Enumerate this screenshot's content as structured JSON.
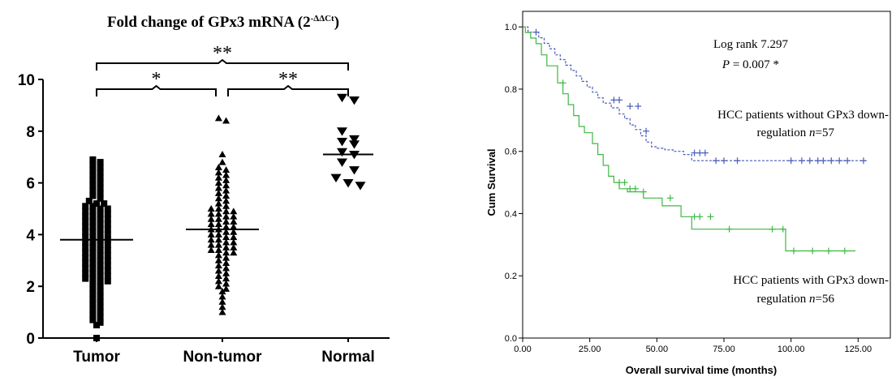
{
  "chart_data": [
    {
      "type": "scatter",
      "title": "Fold change of GPx3 mRNA (2",
      "title_sup": "-ΔΔCt",
      "xlabel": "",
      "ylabel": "",
      "categories": [
        "Tumor",
        "Non-tumor",
        "Normal"
      ],
      "ylim": [
        0,
        10
      ],
      "yticks": [
        "0",
        "2",
        "4",
        "6",
        "8",
        "10"
      ],
      "markers": [
        "square",
        "triangle-up",
        "triangle-down"
      ],
      "means": [
        3.8,
        4.2,
        7.1
      ],
      "series": [
        {
          "values": [
            6.9,
            6.8,
            6.7,
            6.6,
            6.5,
            6.4,
            6.3,
            6.2,
            6.1,
            6.0,
            5.9,
            5.8,
            5.7,
            5.6,
            5.5,
            5.4,
            5.3,
            5.2,
            5.2,
            5.1,
            5.1,
            5.0,
            5.0,
            4.9,
            4.9,
            4.8,
            4.8,
            4.7,
            4.7,
            4.6,
            4.6,
            4.5,
            4.5,
            4.4,
            4.4,
            4.3,
            4.3,
            4.2,
            4.2,
            4.1,
            4.1,
            4.0,
            4.0,
            3.9,
            3.9,
            3.8,
            3.8,
            3.7,
            3.7,
            3.6,
            3.6,
            3.5,
            3.5,
            3.4,
            3.4,
            3.3,
            3.3,
            3.2,
            3.2,
            3.1,
            3.1,
            3.0,
            3.0,
            2.9,
            2.9,
            2.8,
            2.8,
            2.7,
            2.7,
            2.6,
            2.6,
            2.5,
            2.5,
            2.4,
            2.4,
            2.3,
            2.3,
            2.2,
            2.2,
            2.1,
            2.0,
            1.9,
            1.8,
            1.7,
            1.6,
            1.5,
            1.4,
            1.3,
            1.2,
            1.1,
            1.0,
            0.9,
            0.8,
            0.7,
            0.6,
            0.5,
            0.0
          ]
        },
        {
          "values": [
            8.5,
            8.4,
            7.1,
            6.8,
            6.6,
            6.5,
            6.4,
            6.3,
            6.2,
            6.1,
            6.0,
            5.9,
            5.8,
            5.7,
            5.6,
            5.5,
            5.4,
            5.3,
            5.2,
            5.1,
            5.0,
            5.0,
            4.9,
            4.9,
            4.8,
            4.8,
            4.7,
            4.7,
            4.6,
            4.6,
            4.5,
            4.5,
            4.4,
            4.4,
            4.3,
            4.3,
            4.2,
            4.2,
            4.1,
            4.1,
            4.0,
            4.0,
            3.9,
            3.9,
            3.8,
            3.8,
            3.7,
            3.7,
            3.6,
            3.6,
            3.5,
            3.5,
            3.4,
            3.4,
            3.3,
            3.3,
            3.2,
            3.1,
            3.0,
            2.9,
            2.8,
            2.7,
            2.6,
            2.5,
            2.4,
            2.3,
            2.2,
            2.1,
            2.0,
            1.9,
            1.8,
            1.6,
            1.4,
            1.2,
            1.0
          ]
        },
        {
          "values": [
            9.3,
            9.2,
            8.0,
            7.7,
            7.6,
            7.5,
            7.2,
            7.1,
            6.8,
            6.5,
            6.2,
            6.0,
            5.9
          ]
        }
      ],
      "annotations": [
        {
          "from": 0,
          "to": 2,
          "text": "**"
        },
        {
          "from": 0,
          "to": 1,
          "text": "*"
        },
        {
          "from": 1,
          "to": 2,
          "text": "**"
        }
      ]
    },
    {
      "type": "line",
      "xlabel": "Overall survival time (months)",
      "ylabel": "Cum Survival",
      "xlim": [
        0,
        137
      ],
      "ylim": [
        0,
        1.05
      ],
      "xticks": [
        0,
        25,
        50,
        75,
        100,
        125
      ],
      "xtick_labels": [
        "0.00",
        "25.00",
        "50.00",
        "75.00",
        "100.00",
        "125.00"
      ],
      "yticks": [
        0,
        0.2,
        0.4,
        0.6,
        0.8,
        1.0
      ],
      "ytick_labels": [
        "0.0",
        "0.2",
        "0.4",
        "0.6",
        "0.8",
        "1.0"
      ],
      "stats": {
        "line1": "Log rank 7.297",
        "p_symbol": "P",
        "p_rest": " = 0.007 *"
      },
      "series": [
        {
          "color": "#4a5bb8",
          "style": "dashed",
          "label_line1": "HCC patients without GPx3 down-",
          "label_line2_text": "regulation  ",
          "label_n_symbol": "n",
          "label_n_value": "=57",
          "x": [
            0,
            2,
            2,
            6,
            6,
            8,
            8,
            10,
            10,
            12,
            12,
            14,
            14,
            16,
            16,
            18,
            18,
            20,
            20,
            22,
            22,
            24,
            24,
            26,
            26,
            28,
            28,
            30,
            30,
            33,
            33,
            36,
            36,
            38,
            38,
            40,
            40,
            42,
            42,
            44,
            44,
            46,
            46,
            48,
            48,
            50,
            50,
            53,
            53,
            56,
            56,
            60,
            60,
            63,
            63,
            128
          ],
          "y": [
            1.0,
            1.0,
            0.983,
            0.983,
            0.965,
            0.965,
            0.947,
            0.947,
            0.93,
            0.93,
            0.91,
            0.91,
            0.895,
            0.895,
            0.877,
            0.877,
            0.86,
            0.86,
            0.842,
            0.842,
            0.825,
            0.825,
            0.807,
            0.807,
            0.79,
            0.79,
            0.772,
            0.772,
            0.755,
            0.755,
            0.74,
            0.74,
            0.72,
            0.72,
            0.705,
            0.705,
            0.685,
            0.685,
            0.67,
            0.67,
            0.65,
            0.65,
            0.63,
            0.63,
            0.615,
            0.615,
            0.61,
            0.61,
            0.605,
            0.605,
            0.6,
            0.6,
            0.59,
            0.59,
            0.57,
            0.57
          ],
          "censor_x": [
            5,
            34,
            36,
            40,
            43,
            46,
            64,
            66,
            68,
            72,
            75,
            80,
            100,
            104,
            107,
            110,
            112,
            115,
            118,
            121,
            127
          ],
          "censor_y": [
            0.983,
            0.765,
            0.765,
            0.745,
            0.745,
            0.665,
            0.595,
            0.595,
            0.595,
            0.57,
            0.57,
            0.57,
            0.57,
            0.57,
            0.57,
            0.57,
            0.57,
            0.57,
            0.57,
            0.57,
            0.57
          ]
        },
        {
          "color": "#3db843",
          "style": "solid",
          "label_line1": "HCC patients with GPx3 down-",
          "label_line2_text": "regulation  ",
          "label_n_symbol": "n",
          "label_n_value": "=56",
          "x": [
            0,
            1,
            1,
            3,
            3,
            5,
            5,
            7,
            7,
            9,
            9,
            13,
            13,
            15,
            15,
            17,
            17,
            19,
            19,
            21,
            21,
            23,
            23,
            26,
            26,
            28,
            28,
            30,
            30,
            32,
            32,
            34,
            34,
            36,
            36,
            39,
            39,
            45,
            45,
            52,
            52,
            59,
            59,
            63,
            63,
            72,
            72,
            98,
            98,
            124
          ],
          "y": [
            1.0,
            1.0,
            0.982,
            0.982,
            0.964,
            0.964,
            0.946,
            0.946,
            0.91,
            0.91,
            0.875,
            0.875,
            0.82,
            0.82,
            0.785,
            0.785,
            0.75,
            0.75,
            0.715,
            0.715,
            0.68,
            0.68,
            0.66,
            0.66,
            0.625,
            0.625,
            0.59,
            0.59,
            0.555,
            0.555,
            0.52,
            0.52,
            0.5,
            0.5,
            0.48,
            0.48,
            0.47,
            0.47,
            0.45,
            0.45,
            0.425,
            0.425,
            0.39,
            0.39,
            0.35,
            0.35,
            0.35,
            0.35,
            0.28,
            0.28
          ],
          "censor_x": [
            15,
            36,
            38,
            40,
            42,
            45,
            55,
            64,
            66,
            70,
            77,
            93,
            97,
            101,
            108,
            114,
            120
          ],
          "censor_y": [
            0.82,
            0.5,
            0.5,
            0.48,
            0.48,
            0.47,
            0.45,
            0.39,
            0.39,
            0.39,
            0.35,
            0.35,
            0.35,
            0.28,
            0.28,
            0.28,
            0.28
          ]
        }
      ]
    }
  ]
}
